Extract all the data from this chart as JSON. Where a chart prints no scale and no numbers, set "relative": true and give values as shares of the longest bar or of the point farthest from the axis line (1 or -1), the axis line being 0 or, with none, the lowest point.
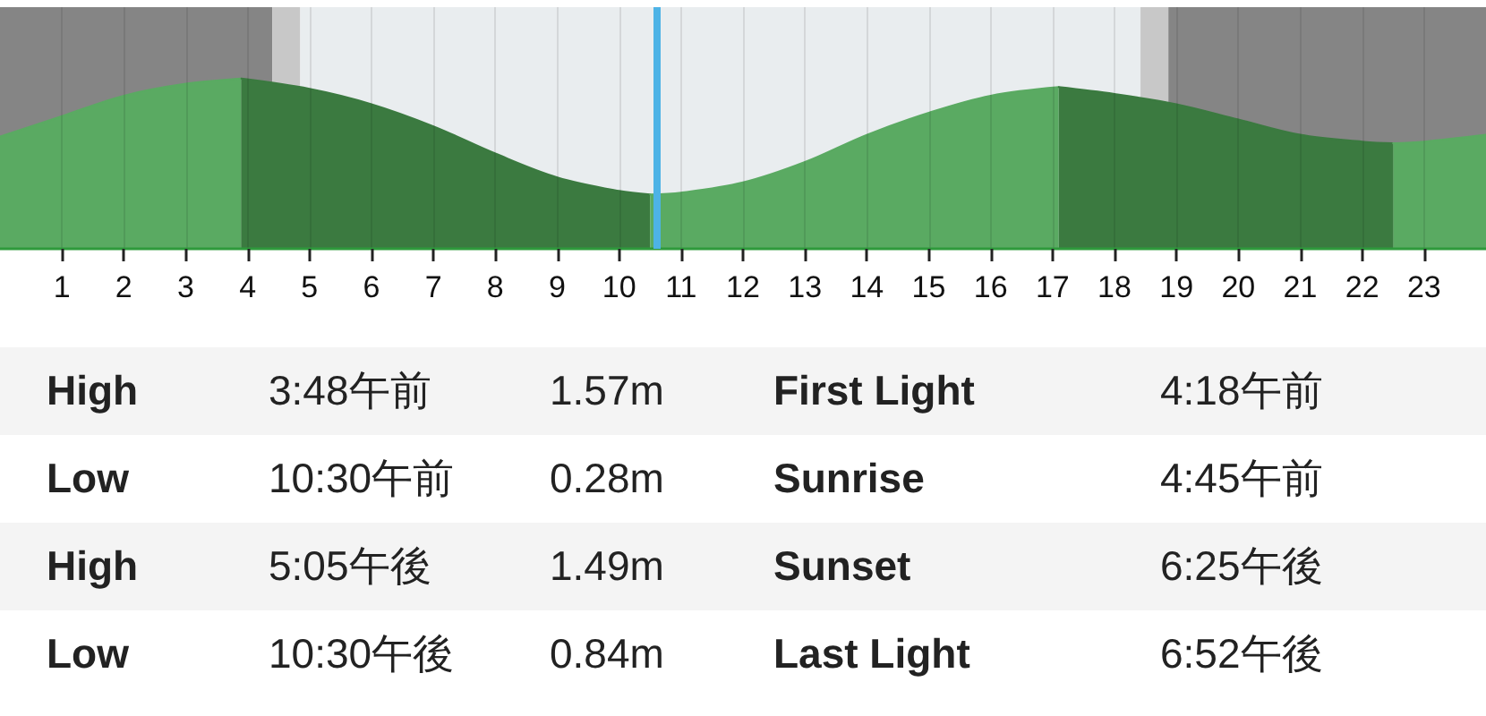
{
  "chart_data": [
    {
      "type": "area",
      "relative": true,
      "xlim": [
        0,
        24
      ],
      "xticks": [
        1,
        2,
        3,
        4,
        5,
        6,
        7,
        8,
        9,
        10,
        11,
        12,
        13,
        14,
        15,
        16,
        17,
        18,
        19,
        20,
        21,
        22,
        23
      ],
      "grid": "x",
      "series": [
        {
          "color": "#5aaa62",
          "x": [
            0,
            1,
            2,
            3,
            3.9
          ],
          "values": [
            0.66,
            0.78,
            0.9,
            0.97,
            1
          ]
        },
        {
          "color": "#3b7a40",
          "x": [
            3.9,
            5,
            6,
            7,
            8,
            9,
            10,
            10.5
          ],
          "values": [
            1,
            0.94,
            0.85,
            0.72,
            0.56,
            0.42,
            0.34,
            0.32
          ]
        },
        {
          "color": "#5aaa62",
          "x": [
            10.5,
            11,
            12,
            13,
            14,
            15,
            16,
            17.1
          ],
          "values": [
            0.32,
            0.33,
            0.39,
            0.51,
            0.67,
            0.8,
            0.9,
            0.95
          ]
        },
        {
          "color": "#3b7a40",
          "x": [
            17.1,
            18,
            19,
            20,
            21,
            22,
            22.5
          ],
          "values": [
            0.95,
            0.91,
            0.85,
            0.76,
            0.67,
            0.63,
            0.62
          ]
        },
        {
          "color": "#5aaa62",
          "x": [
            22.5,
            23,
            24
          ],
          "values": [
            0.62,
            0.63,
            0.67
          ]
        }
      ],
      "bands": [
        {
          "axis": "x",
          "from": 0,
          "to": 4.4,
          "color": "#858585"
        },
        {
          "axis": "x",
          "from": 4.4,
          "to": 4.85,
          "color": "#c8c8c8"
        },
        {
          "axis": "x",
          "from": 4.85,
          "to": 18.42,
          "color": "#e9edef"
        },
        {
          "axis": "x",
          "from": 18.42,
          "to": 18.87,
          "color": "#c8c8c8"
        },
        {
          "axis": "x",
          "from": 18.87,
          "to": 24,
          "color": "#858585"
        }
      ],
      "ref_lines": [
        {
          "axis": "x",
          "value": 10.6,
          "color": "#4db3e6",
          "line_style": "solid"
        }
      ]
    },
    {
      "type": "other",
      "annotations": [
        "High",
        "3:48午前",
        "1.57m",
        "First Light",
        "4:18午前",
        "Low",
        "10:30午前",
        "0.28m",
        "Sunrise",
        "4:45午前",
        "High",
        "5:05午後",
        "1.49m",
        "Sunset",
        "6:25午後",
        "Low",
        "10:30午後",
        "0.84m",
        "Last Light",
        "6:52午後"
      ]
    }
  ]
}
